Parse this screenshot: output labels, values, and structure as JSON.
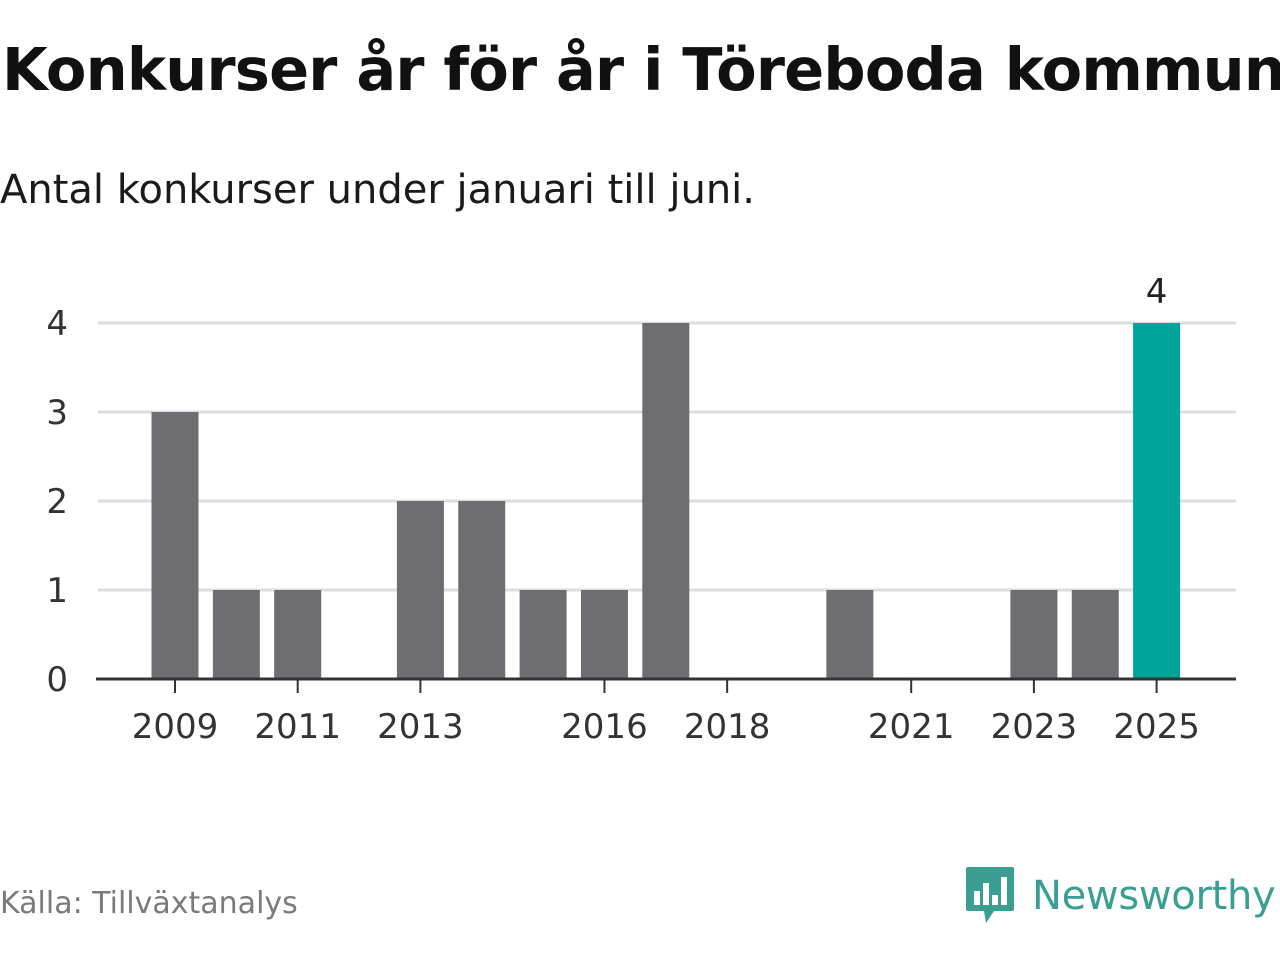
{
  "header": {
    "title": "Konkurser år för år i Töreboda kommun",
    "subtitle": "Antal konkurser under januari till juni."
  },
  "footer": {
    "source": "Källa: Tillväxtanalys",
    "brand": "Newsworthy",
    "brand_icon": "newsworthy-logo-icon"
  },
  "colors": {
    "bar": "#6e6d72",
    "highlight": "#00a49a",
    "grid": "#dddddd",
    "axis": "#333333",
    "brand": "#3a9e92"
  },
  "chart_data": {
    "type": "bar",
    "categories": [
      "2009",
      "2010",
      "2011",
      "2012",
      "2013",
      "2014",
      "2015",
      "2016",
      "2017",
      "2018",
      "2019",
      "2020",
      "2021",
      "2022",
      "2023",
      "2024",
      "2025"
    ],
    "values": [
      3,
      1,
      1,
      0,
      2,
      2,
      1,
      1,
      4,
      0,
      0,
      1,
      0,
      0,
      1,
      1,
      4
    ],
    "highlight_index": 16,
    "data_labels": [
      {
        "index": 16,
        "text": "4"
      }
    ],
    "x_tick_labels": [
      "2009",
      "2011",
      "2013",
      "2016",
      "2018",
      "2021",
      "2023",
      "2025"
    ],
    "y_ticks": [
      0,
      1,
      2,
      3,
      4
    ],
    "ylim": [
      0,
      4
    ],
    "grid": true,
    "legend": "none",
    "title": "Konkurser år för år i Töreboda kommun",
    "subtitle": "Antal konkurser under januari till juni."
  }
}
